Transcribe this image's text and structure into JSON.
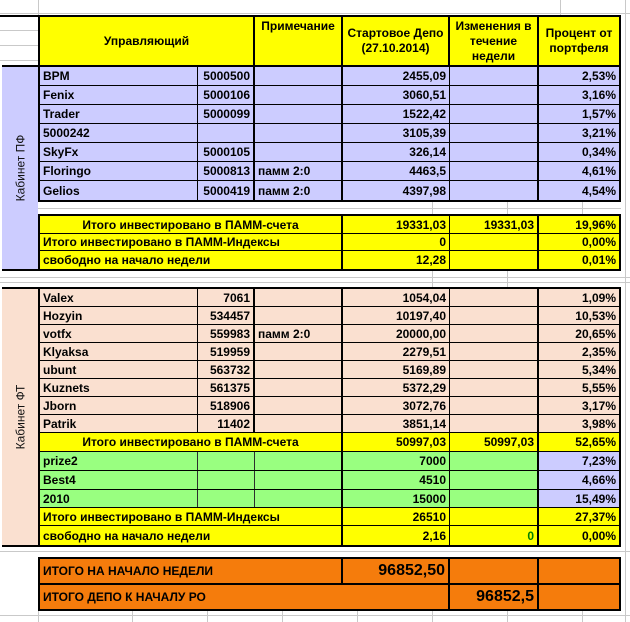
{
  "palette": {
    "yellow": "#ffff00",
    "lavender": "#ccccff",
    "peach": "#fae0d0",
    "green": "#99ff80",
    "orange": "#f57c0c",
    "gridline": "#c9c9c9",
    "comment_marker": "#1e7e1e",
    "zero_text": "#008000"
  },
  "header": {
    "manager": "Управляющий",
    "note": "Примечание",
    "start_depo": "Стартовое Депо (27.10.2014)",
    "week_change": "Изменения в течение недели",
    "portfolio_pct": "Процент от портфеля"
  },
  "section1": {
    "band_label": "Кабинет ПФ",
    "rows": [
      {
        "name": "BPM",
        "account": "5000500",
        "note": "",
        "depo": "2455,09",
        "change": "",
        "pct": "2,53%"
      },
      {
        "name": "Fenix",
        "account": "5000106",
        "note": "",
        "depo": "3060,51",
        "change": "",
        "pct": "3,16%"
      },
      {
        "name": "Trader",
        "account": "5000099",
        "note": "",
        "depo": "1522,42",
        "change": "",
        "pct": "1,57%"
      },
      {
        "name": "5000242",
        "account": "",
        "note": "",
        "depo": "3105,39",
        "change": "",
        "pct": "3,21%"
      },
      {
        "name": "SkyFx",
        "account": "5000105",
        "note": "",
        "depo": "326,14",
        "change": "",
        "pct": "0,34%"
      },
      {
        "name": "Floringo",
        "account": "5000813",
        "note": "памм 2:0",
        "depo": "4463,5",
        "change": "",
        "pct": "4,61%"
      },
      {
        "name": "Gelios",
        "account": "5000419",
        "note": "памм 2:0",
        "depo": "4397,98",
        "change": "",
        "pct": "4,54%"
      }
    ],
    "totals": [
      {
        "label": "Итого инвестировано в ПАММ-счета",
        "depo": "19331,03",
        "change": "19331,03",
        "pct": "19,96%",
        "center": true
      },
      {
        "label": "Итого инвестировано в ПАММ-Индексы",
        "depo": "0",
        "change": "",
        "pct": "0,00%",
        "center": false
      },
      {
        "label": "свободно на начало недели",
        "depo": "12,28",
        "change": "",
        "pct": "0,01%",
        "center": false
      }
    ]
  },
  "section2": {
    "band_label": "Кабинет ФТ",
    "rows": [
      {
        "name": "Valex",
        "account": "7061",
        "note": "",
        "depo": "1054,04",
        "change": "",
        "pct": "1,09%"
      },
      {
        "name": "Hozyin",
        "account": "534457",
        "note": "",
        "depo": "10197,40",
        "change": "",
        "pct": "10,53%"
      },
      {
        "name": "votfx",
        "account": "559983",
        "note": "памм 2:0",
        "depo": "20000,00",
        "change": "",
        "pct": "20,65%"
      },
      {
        "name": "Klyaksa",
        "account": "519959",
        "note": "",
        "depo": "2279,51",
        "change": "",
        "pct": "2,35%"
      },
      {
        "name": "ubunt",
        "account": "563732",
        "note": "",
        "depo": "5169,89",
        "change": "",
        "pct": "5,34%"
      },
      {
        "name": "Kuznets",
        "account": "561375",
        "note": "",
        "depo": "5372,29",
        "change": "",
        "pct": "5,55%"
      },
      {
        "name": "Jborn",
        "account": "518906",
        "note": "",
        "depo": "3072,76",
        "change": "",
        "pct": "3,17%"
      },
      {
        "name": "Patrik",
        "account": "11402",
        "note": "",
        "depo": "3851,14",
        "change": "",
        "pct": "3,98%"
      }
    ],
    "pamm_total": {
      "label": "Итого инвестировано в ПАММ-счета",
      "depo": "50997,03",
      "change": "50997,03",
      "pct": "52,65%"
    },
    "index_rows": [
      {
        "name": "prize2",
        "account": "",
        "note": "",
        "depo": "7000",
        "change": "",
        "pct": "7,23%"
      },
      {
        "name": "Best4",
        "account": "",
        "note": "",
        "depo": "4510",
        "change": "",
        "pct": "4,66%"
      },
      {
        "name": "2010",
        "account": "",
        "note": "",
        "depo": "15000",
        "change": "",
        "pct": "15,49%"
      }
    ],
    "index_total": {
      "label": "Итого инвестировано в ПАММ-Индексы",
      "depo": "26510",
      "change": "",
      "pct": "27,37%"
    },
    "free_row": {
      "label": "свободно на начало недели",
      "depo": "2,16",
      "change": "0",
      "pct": "0,00%"
    }
  },
  "grand": {
    "row1": {
      "label": "ИТОГО НА НАЧАЛО НЕДЕЛИ",
      "value": "96852,50"
    },
    "row2": {
      "label": "ИТОГО ДЕПО К НАЧАЛУ РО",
      "value": "96852,5"
    }
  }
}
